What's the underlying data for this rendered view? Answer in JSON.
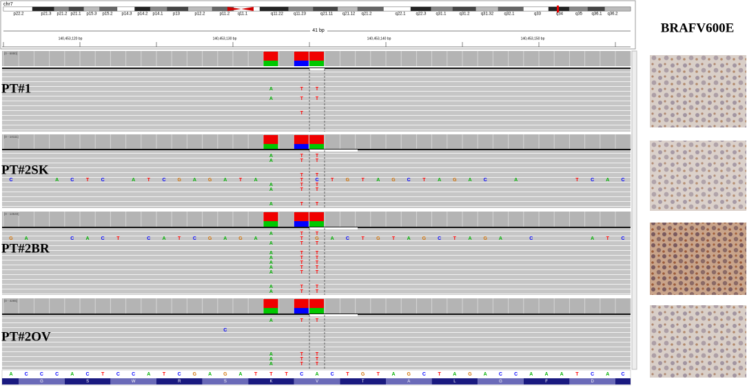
{
  "genome": "chr7",
  "cytobands": [
    "p22.2",
    "p21.3",
    "p21.2",
    "p21.1",
    "p15.3",
    "p15.2",
    "p14.3",
    "p14.2",
    "p14.1",
    "p13",
    "p12.2",
    "p11.2",
    "q11.1",
    "q11.22",
    "q11.23",
    "q21.11",
    "q21.12",
    "q21.2",
    "q22.1",
    "q22.3",
    "q31.1",
    "q31.2",
    "q31.32",
    "q32.1",
    "q33",
    "q34",
    "q35",
    "q36.1",
    "q36.2"
  ],
  "ruler": {
    "span": "41 bp",
    "positions": [
      "140,453,120 bp",
      "140,453,130 bp",
      "140,453,140 bp",
      "140,453,150 bp"
    ]
  },
  "tracks": [
    {
      "sample": "PT#1",
      "range": "[0 - 6880]",
      "rows": [
        null,
        null,
        null,
        "                 A TT                    ",
        null,
        "                 A TT                    ",
        null,
        null,
        "                   T                     ",
        null,
        null,
        null
      ]
    },
    {
      "sample": "PT#2SK",
      "range": "[0 - 14111]",
      "rows": [
        "                 A TT                    ",
        "                 A TT                    ",
        null,
        null,
        "                   TT                    ",
        "C  ACTC ATCGAGATA  TCTGTAGCTAGAC A   TCAC",
        "                 A TT                    ",
        "                 A TT                    ",
        null,
        null,
        "                 A TT                    "
      ]
    },
    {
      "sample": "PT#2BR",
      "range": "[0 - 14640]",
      "rows": [
        "                 A TT                    ",
        "GA  CACT CATCGAGA  TGACTGTAGCTAGA C   ATC",
        "                 A TT                    ",
        null,
        "                 A TT                    ",
        "                 A TT                    ",
        "                 A TT                    ",
        "                 A TT                    ",
        "                 A TT                    ",
        null,
        null,
        "                 A TT                    ",
        "                 A TT                    "
      ]
    },
    {
      "sample": "PT#2OV",
      "range": "[0 - 4265]",
      "rows": [
        "                 A TT                    ",
        null,
        "              C                          ",
        null,
        null,
        null,
        null,
        "                 A TT                    ",
        "                 A TT                    ",
        "                 A TT                    "
      ]
    }
  ],
  "reference": {
    "sequence": "ACCCACTCCATCGAGATTTCACTGTAGCTAGACCAAATCAC",
    "amino_acids": [
      "G",
      "S",
      "W",
      "R",
      "S",
      "K",
      "V",
      "T",
      "A",
      "L",
      "G",
      "F",
      "D"
    ]
  },
  "panel_title": "BRAFV600E"
}
